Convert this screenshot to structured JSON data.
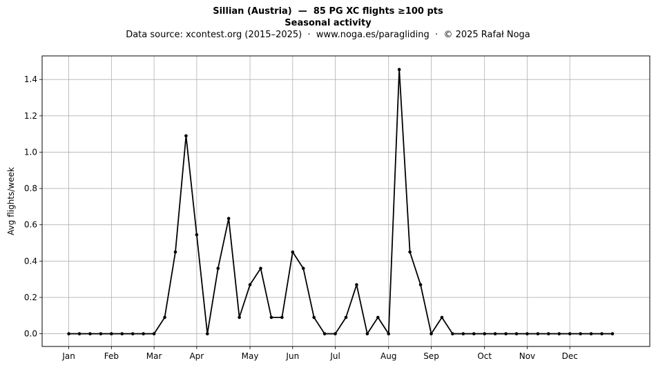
{
  "chart_data": {
    "type": "line",
    "title": "Sillian (Austria)  —  85 PG XC flights ≥100 pts",
    "subtitle": "Seasonal activity",
    "source_note": "Data source: xcontest.org (2015–2025)  ·  www.noga.es/paragliding  ·  © 2025 Rafał Noga",
    "xlabel": "",
    "ylabel": "Avg flights/week",
    "xlim": [
      -2.5,
      54.5
    ],
    "ylim": [
      -0.07,
      1.53
    ],
    "yticks": [
      0.0,
      0.2,
      0.4,
      0.6,
      0.8,
      1.0,
      1.2,
      1.4
    ],
    "ytick_labels": [
      "0.0",
      "0.2",
      "0.4",
      "0.6",
      "0.8",
      "1.0",
      "1.2",
      "1.4"
    ],
    "xticks": [
      0,
      4,
      8,
      12,
      17,
      21,
      25,
      30,
      34,
      39,
      43,
      47
    ],
    "xtick_labels": [
      "Jan",
      "Feb",
      "Mar",
      "Apr",
      "May",
      "Jun",
      "Jul",
      "Aug",
      "Sep",
      "Oct",
      "Nov",
      "Dec"
    ],
    "grid": true,
    "line_color": "#000000",
    "x": [
      0,
      1,
      2,
      3,
      4,
      5,
      6,
      7,
      8,
      9,
      10,
      11,
      12,
      13,
      14,
      15,
      16,
      17,
      18,
      19,
      20,
      21,
      22,
      23,
      24,
      25,
      26,
      27,
      28,
      29,
      30,
      31,
      32,
      33,
      34,
      35,
      36,
      37,
      38,
      39,
      40,
      41,
      42,
      43,
      44,
      45,
      46,
      47,
      48,
      49,
      50,
      51
    ],
    "y": [
      0,
      0,
      0,
      0,
      0,
      0,
      0,
      0,
      0,
      0.09,
      0.45,
      1.09,
      0.545,
      0,
      0.36,
      0.635,
      0.09,
      0.27,
      0.36,
      0.09,
      0.09,
      0.45,
      0.36,
      0.09,
      0,
      0,
      0.09,
      0.27,
      0,
      0.09,
      0,
      1.455,
      0.45,
      0.27,
      0,
      0.09,
      0,
      0,
      0,
      0,
      0,
      0,
      0,
      0,
      0,
      0,
      0,
      0,
      0,
      0,
      0,
      0
    ]
  }
}
